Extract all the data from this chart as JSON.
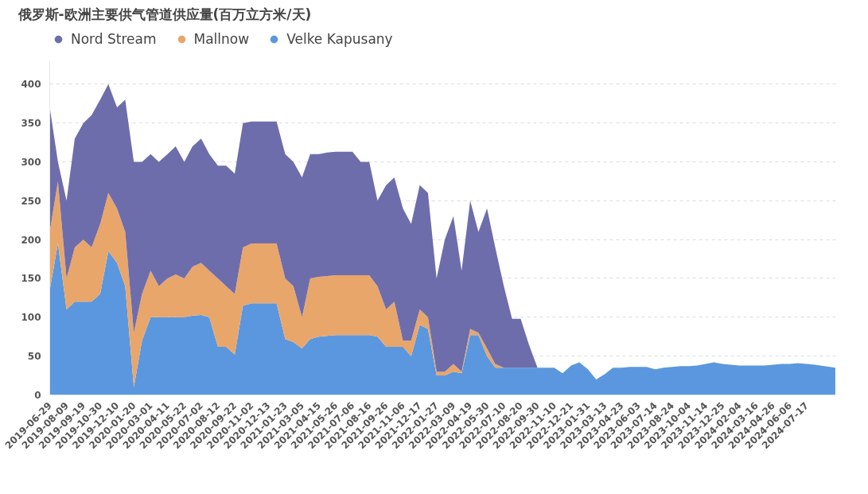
{
  "chart_data": {
    "type": "area",
    "stacked": true,
    "title": "俄罗斯-欧洲主要供气管道供应量(百万立方米/天)",
    "x": [
      "2019-06-29",
      "2019-07-19",
      "2019-08-09",
      "2019-08-29",
      "2019-09-19",
      "2019-10-09",
      "2019-10-30",
      "2019-11-19",
      "2019-12-10",
      "2019-12-30",
      "2020-01-20",
      "2020-02-09",
      "2020-03-01",
      "2020-03-21",
      "2020-04-11",
      "2020-05-01",
      "2020-05-22",
      "2020-06-11",
      "2020-07-02",
      "2020-07-22",
      "2020-08-12",
      "2020-09-01",
      "2020-09-22",
      "2020-10-12",
      "2020-11-02",
      "2020-11-22",
      "2020-12-13",
      "2021-01-02",
      "2021-01-23",
      "2021-02-12",
      "2021-03-05",
      "2021-03-25",
      "2021-04-15",
      "2021-05-05",
      "2021-05-26",
      "2021-06-15",
      "2021-07-06",
      "2021-07-26",
      "2021-08-16",
      "2021-09-05",
      "2021-09-26",
      "2021-10-16",
      "2021-11-06",
      "2021-11-26",
      "2021-12-17",
      "2022-01-06",
      "2022-01-27",
      "2022-02-16",
      "2022-03-09",
      "2022-03-29",
      "2022-04-19",
      "2022-05-09",
      "2022-05-30",
      "2022-06-19",
      "2022-07-10",
      "2022-07-30",
      "2022-08-20",
      "2022-09-09",
      "2022-09-30",
      "2022-10-20",
      "2022-11-10",
      "2022-11-30",
      "2022-12-21",
      "2023-01-10",
      "2023-01-31",
      "2023-02-20",
      "2023-03-13",
      "2023-04-02",
      "2023-04-23",
      "2023-05-13",
      "2023-06-03",
      "2023-06-23",
      "2023-07-14",
      "2023-08-03",
      "2023-08-24",
      "2023-09-13",
      "2023-10-04",
      "2023-10-24",
      "2023-11-14",
      "2023-12-04",
      "2023-12-25",
      "2024-01-14",
      "2024-02-04",
      "2024-02-24",
      "2024-03-16",
      "2024-04-05",
      "2024-04-26",
      "2024-05-16",
      "2024-06-06",
      "2024-06-26",
      "2024-07-17",
      "2024-08-06",
      "2024-09-25"
    ],
    "series": [
      {
        "name": "Velke Kapusany",
        "color": "#5b97de",
        "values": [
          135,
          195,
          110,
          120,
          120,
          120,
          130,
          185,
          170,
          140,
          10,
          70,
          100,
          100,
          100,
          100,
          100,
          102,
          103,
          100,
          62,
          62,
          52,
          115,
          118,
          118,
          118,
          118,
          72,
          68,
          60,
          72,
          75,
          76,
          77,
          77,
          77,
          77,
          77,
          75,
          62,
          62,
          62,
          50,
          90,
          85,
          25,
          25,
          30,
          28,
          77,
          77,
          50,
          35,
          35,
          35,
          35,
          35,
          35,
          35,
          35,
          28,
          38,
          42,
          33,
          20,
          27,
          35,
          35,
          36,
          36,
          36,
          33,
          35,
          36,
          37,
          37,
          38,
          40,
          42,
          40,
          39,
          38,
          38,
          38,
          38,
          39,
          40,
          40,
          41,
          40,
          39,
          35
        ]
      },
      {
        "name": "Mallnow",
        "color": "#e9a66b",
        "values": [
          75,
          80,
          40,
          70,
          80,
          70,
          90,
          75,
          70,
          70,
          70,
          60,
          60,
          40,
          50,
          55,
          50,
          63,
          67,
          60,
          88,
          78,
          78,
          75,
          77,
          77,
          77,
          77,
          78,
          72,
          40,
          78,
          77,
          77,
          77,
          77,
          77,
          77,
          77,
          65,
          48,
          58,
          8,
          20,
          20,
          15,
          5,
          5,
          10,
          2,
          8,
          3,
          10,
          5,
          0,
          0,
          0,
          0,
          0,
          0,
          0,
          0,
          0,
          0,
          0,
          0,
          0,
          0,
          0,
          0,
          0,
          0,
          0,
          0,
          0,
          0,
          0,
          0,
          0,
          0,
          0,
          0,
          0,
          0,
          0,
          0,
          0,
          0,
          0,
          0,
          0,
          0,
          0
        ]
      },
      {
        "name": "Nord Stream",
        "color": "#6e6dab",
        "values": [
          160,
          25,
          100,
          140,
          150,
          170,
          160,
          140,
          130,
          170,
          220,
          170,
          150,
          160,
          160,
          165,
          150,
          155,
          160,
          150,
          145,
          155,
          155,
          160,
          157,
          157,
          157,
          157,
          160,
          160,
          180,
          160,
          158,
          159,
          159,
          159,
          159,
          146,
          146,
          110,
          160,
          160,
          170,
          150,
          160,
          160,
          120,
          170,
          190,
          130,
          165,
          130,
          180,
          150,
          105,
          63,
          63,
          30,
          0,
          0,
          0,
          0,
          0,
          0,
          0,
          0,
          0,
          0,
          0,
          0,
          0,
          0,
          0,
          0,
          0,
          0,
          0,
          0,
          0,
          0,
          0,
          0,
          0,
          0,
          0,
          0,
          0,
          0,
          0,
          0,
          0,
          0,
          0
        ]
      }
    ],
    "xlim": [
      "2019-06-29",
      "2024-09-30"
    ],
    "xticks": [
      {
        "value": "2019-06-29",
        "label": "2019-06-29"
      },
      {
        "value": "2019-08-09",
        "label": "2019-08-09"
      },
      {
        "value": "2019-09-19",
        "label": "2019-09-19"
      },
      {
        "value": "2019-10-30",
        "label": "2019-10-30"
      },
      {
        "value": "2019-12-10",
        "label": "2019-12-10"
      },
      {
        "value": "2020-01-20",
        "label": "2020-01-20"
      },
      {
        "value": "2020-03-01",
        "label": "2020-03-01"
      },
      {
        "value": "2020-04-11",
        "label": "2020-04-11"
      },
      {
        "value": "2020-05-22",
        "label": "2020-05-22"
      },
      {
        "value": "2020-07-02",
        "label": "2020-07-02"
      },
      {
        "value": "2020-08-12",
        "label": "2020-08-12"
      },
      {
        "value": "2020-09-22",
        "label": "2020-09-22"
      },
      {
        "value": "2020-11-02",
        "label": "2020-11-02"
      },
      {
        "value": "2020-12-13",
        "label": "2020-12-13"
      },
      {
        "value": "2021-01-23",
        "label": "2021-01-23"
      },
      {
        "value": "2021-03-05",
        "label": "2021-03-05"
      },
      {
        "value": "2021-04-15",
        "label": "2021-04-15"
      },
      {
        "value": "2021-05-26",
        "label": "2021-05-26"
      },
      {
        "value": "2021-07-06",
        "label": "2021-07-06"
      },
      {
        "value": "2021-08-16",
        "label": "2021-08-16"
      },
      {
        "value": "2021-09-26",
        "label": "2021-09-26"
      },
      {
        "value": "2021-11-06",
        "label": "2021-11-06"
      },
      {
        "value": "2021-12-17",
        "label": "2021-12-17"
      },
      {
        "value": "2022-01-27",
        "label": "2022-01-27"
      },
      {
        "value": "2022-03-09",
        "label": "2022-03-09"
      },
      {
        "value": "2022-04-19",
        "label": "2022-04-19"
      },
      {
        "value": "2022-05-30",
        "label": "2022-05-30"
      },
      {
        "value": "2022-07-10",
        "label": "2022-07-10"
      },
      {
        "value": "2022-08-20",
        "label": "2022-08-20"
      },
      {
        "value": "2022-09-30",
        "label": "2022-09-30"
      },
      {
        "value": "2022-11-10",
        "label": "2022-11-10"
      },
      {
        "value": "2022-12-21",
        "label": "2022-12-21"
      },
      {
        "value": "2023-01-31",
        "label": "2023-01-31"
      },
      {
        "value": "2023-03-13",
        "label": "2023-03-13"
      },
      {
        "value": "2023-04-23",
        "label": "2023-04-23"
      },
      {
        "value": "2023-06-03",
        "label": "2023-06-03"
      },
      {
        "value": "2023-07-14",
        "label": "2023-07-14"
      },
      {
        "value": "2023-08-24",
        "label": "2023-08-24"
      },
      {
        "value": "2023-10-04",
        "label": "2023-10-04"
      },
      {
        "value": "2023-11-14",
        "label": "2023-11-14"
      },
      {
        "value": "2023-12-25",
        "label": "2023-12-25"
      },
      {
        "value": "2024-02-04",
        "label": "2024-02-04"
      },
      {
        "value": "2024-03-16",
        "label": "2024-03-16"
      },
      {
        "value": "2024-04-26",
        "label": "2024-04-26"
      },
      {
        "value": "2024-06-06",
        "label": "2024-06-06"
      },
      {
        "value": "2024-07-17",
        "label": "2024-07-17"
      }
    ],
    "ylim": [
      0,
      430
    ],
    "yticks": [
      0,
      50,
      100,
      150,
      200,
      250,
      300,
      350,
      400
    ],
    "grid": "y",
    "legend": "top left"
  }
}
